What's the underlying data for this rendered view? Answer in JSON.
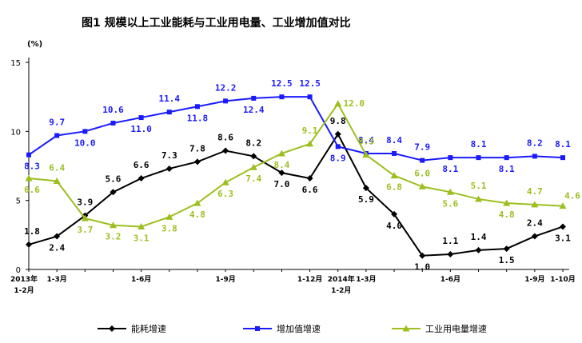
{
  "title": "图1   规模以上工业能耗与工业用电量、工业增加值对比",
  "colors": {
    "energy": "#000000",
    "value_added": "#1a1aff",
    "electricity": "#9cbf1e",
    "axis": "#000000"
  },
  "chart_data": {
    "type": "line",
    "title": "图1   规模以上工业能耗与工业用电量、工业增加值对比",
    "ylabel": "(%)",
    "xlabel": "",
    "ylim": [
      0,
      15
    ],
    "yticks": [
      0,
      5,
      10,
      15
    ],
    "grid": false,
    "legend_position": "bottom",
    "x_tick_labels": [
      {
        "index": 0,
        "line1": "2013年",
        "line2": "1-2月"
      },
      {
        "index": 1,
        "line1": "1-3月",
        "line2": ""
      },
      {
        "index": 4,
        "line1": "1-6月",
        "line2": ""
      },
      {
        "index": 7,
        "line1": "1-9月",
        "line2": ""
      },
      {
        "index": 10,
        "line1": "1-12月",
        "line2": ""
      },
      {
        "index": 11,
        "line1": "2014年",
        "line2": "1-2月"
      },
      {
        "index": 12,
        "line1": "1-3月",
        "line2": ""
      },
      {
        "index": 15,
        "line1": "1-6月",
        "line2": ""
      },
      {
        "index": 18,
        "line1": "1-9月",
        "line2": ""
      },
      {
        "index": 19,
        "line1": "1-10月",
        "line2": ""
      }
    ],
    "series": [
      {
        "name": "能耗增速",
        "key": "energy",
        "marker": "diamond",
        "values": [
          1.8,
          2.4,
          3.9,
          5.6,
          6.6,
          7.3,
          7.8,
          8.6,
          8.2,
          7.0,
          6.6,
          9.8,
          5.9,
          4.0,
          1.0,
          1.1,
          1.4,
          1.5,
          2.4,
          3.1
        ]
      },
      {
        "name": "增加值增速",
        "key": "value_added",
        "marker": "square",
        "values": [
          8.3,
          9.7,
          10.0,
          10.6,
          11.0,
          11.4,
          11.8,
          12.2,
          12.4,
          12.5,
          12.5,
          8.9,
          8.4,
          8.4,
          7.9,
          8.1,
          8.1,
          8.1,
          8.2,
          8.1
        ]
      },
      {
        "name": "工业用电量增速",
        "key": "electricity",
        "marker": "triangle",
        "values": [
          6.6,
          6.4,
          3.7,
          3.2,
          3.1,
          3.8,
          4.8,
          6.3,
          7.4,
          8.4,
          9.1,
          12.0,
          8.3,
          6.8,
          6.0,
          5.6,
          5.1,
          4.8,
          4.7,
          4.6
        ]
      }
    ],
    "data_labels": {
      "energy": [
        "1.8",
        "2.4",
        "3.9",
        "5.6",
        "6.6",
        "7.3",
        "7.8",
        "8.6",
        "8.2",
        "7.0",
        "6.6",
        "9.8",
        "5.9",
        "4.0",
        "1.0",
        "1.1",
        "1.4",
        "1.5",
        "2.4",
        "3.1"
      ],
      "value_added": [
        "8.3",
        "9.7",
        "10.0",
        "10.6",
        "11.0",
        "11.4",
        "11.8",
        "12.2",
        "12.4",
        "12.5",
        "12.5",
        "8.9",
        "8.4",
        "8.4",
        "7.9",
        "8.1",
        "8.1",
        "8.1",
        "8.2",
        "8.1"
      ],
      "electricity": [
        "6.6",
        "6.4",
        "3.7",
        "3.2",
        "3.1",
        "3.8",
        "4.8",
        "6.3",
        "7.4",
        "8.4",
        "9.1",
        "12.0",
        "8.3",
        "6.8",
        "6.0",
        "5.6",
        "5.1",
        "4.8",
        "4.7",
        "4.6"
      ]
    }
  }
}
